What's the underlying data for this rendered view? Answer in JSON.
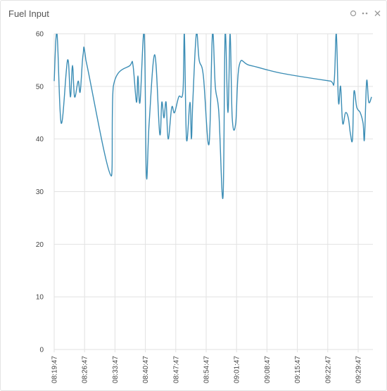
{
  "chart_data": {
    "type": "line",
    "title": "Fuel Input",
    "x": [
      "08:19:47",
      "08:20:26",
      "08:21:24",
      "08:22:52",
      "08:23:31",
      "08:24:00",
      "08:24:29",
      "08:25:18",
      "08:25:47",
      "08:26:26",
      "08:27:05",
      "08:32:54",
      "08:33:24",
      "08:37:17",
      "08:37:56",
      "08:38:44",
      "08:39:04",
      "08:39:33",
      "08:40:31",
      "08:41:01",
      "08:41:39",
      "08:42:57",
      "08:44:05",
      "08:44:34",
      "08:45:04",
      "08:45:33",
      "08:46:02",
      "08:46:51",
      "08:47:29",
      "08:48:28",
      "08:49:26",
      "08:49:46",
      "08:50:15",
      "08:51:03",
      "08:51:23",
      "08:51:42",
      "08:52:31",
      "08:53:10",
      "08:54:08",
      "08:55:26",
      "08:56:14",
      "08:56:53",
      "08:57:42",
      "08:58:40",
      "08:59:09",
      "08:59:48",
      "09:00:18",
      "09:00:47",
      "09:01:35",
      "09:02:24",
      "09:04:50",
      "09:12:07",
      "09:23:28",
      "09:24:16",
      "09:24:45",
      "09:25:15",
      "09:25:44",
      "09:26:13",
      "09:26:52",
      "09:27:31",
      "09:28:00",
      "09:28:29",
      "09:28:49",
      "09:29:28",
      "09:30:16",
      "09:30:55",
      "09:31:14",
      "09:31:44",
      "09:32:13",
      "09:32:52"
    ],
    "series": [
      {
        "color": "#3b8db5",
        "values": [
          51,
          60,
          43,
          55,
          48,
          54,
          48,
          51,
          49,
          56,
          55,
          33,
          50,
          54,
          54,
          47,
          52,
          47,
          60,
          33,
          43,
          56,
          41,
          47,
          44,
          47,
          40,
          46,
          45,
          48,
          49,
          60,
          40,
          47,
          40,
          47,
          60,
          55,
          52,
          39,
          60,
          50,
          45,
          29,
          60,
          45,
          60,
          44,
          43,
          54,
          54,
          52.5,
          51,
          51,
          60,
          47,
          50,
          43,
          45,
          44,
          41,
          40,
          49,
          46,
          45,
          43,
          40,
          51,
          47,
          48
        ]
      }
    ],
    "xlim": [
      "08:19:47",
      "09:33:11"
    ],
    "xticks": [
      "08:19:47",
      "08:26:47",
      "08:33:47",
      "08:40:47",
      "08:47:47",
      "08:54:47",
      "09:01:47",
      "09:08:47",
      "09:15:47",
      "09:22:47",
      "09:29:47"
    ],
    "ylim": [
      0,
      60
    ],
    "yticks": [
      0,
      10,
      20,
      30,
      40,
      50,
      60
    ],
    "grid": true
  }
}
